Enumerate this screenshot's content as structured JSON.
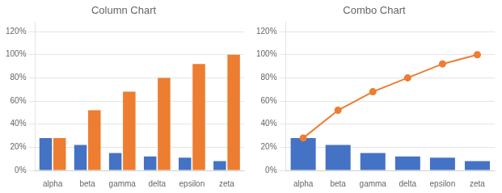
{
  "chart_data": [
    {
      "type": "bar",
      "title": "Column Chart",
      "categories": [
        "alpha",
        "beta",
        "gamma",
        "delta",
        "epsilon",
        "zeta"
      ],
      "series": [
        {
          "color": "#4472C4",
          "values": [
            0.28,
            0.22,
            0.15,
            0.12,
            0.11,
            0.08
          ]
        },
        {
          "color": "#ED7D31",
          "values": [
            0.28,
            0.52,
            0.68,
            0.8,
            0.92,
            1.0
          ]
        }
      ],
      "ylim": [
        0,
        1.28
      ],
      "yticks": [
        {
          "value": 0,
          "label": "0%"
        },
        {
          "value": 0.2,
          "label": "20%"
        },
        {
          "value": 0.4,
          "label": "40%"
        },
        {
          "value": 0.6,
          "label": "60%"
        },
        {
          "value": 0.8,
          "label": "80%"
        },
        {
          "value": 1.0,
          "label": "100%"
        },
        {
          "value": 1.2,
          "label": "120%"
        }
      ],
      "grid": true
    },
    {
      "type": "bar",
      "title": "Combo Chart",
      "categories": [
        "alpha",
        "beta",
        "gamma",
        "delta",
        "epsilon",
        "zeta"
      ],
      "series": [
        {
          "type": "bar",
          "color": "#4472C4",
          "values": [
            0.28,
            0.22,
            0.15,
            0.12,
            0.11,
            0.08
          ]
        },
        {
          "type": "line",
          "color": "#ED7D31",
          "marker": "circle",
          "values": [
            0.28,
            0.52,
            0.68,
            0.8,
            0.92,
            1.0
          ]
        }
      ],
      "ylim": [
        0,
        1.28
      ],
      "yticks": [
        {
          "value": 0,
          "label": "0%"
        },
        {
          "value": 0.2,
          "label": "20%"
        },
        {
          "value": 0.4,
          "label": "40%"
        },
        {
          "value": 0.6,
          "label": "60%"
        },
        {
          "value": 0.8,
          "label": "80%"
        },
        {
          "value": 1.0,
          "label": "100%"
        },
        {
          "value": 1.2,
          "label": "120%"
        }
      ],
      "grid": true
    }
  ]
}
